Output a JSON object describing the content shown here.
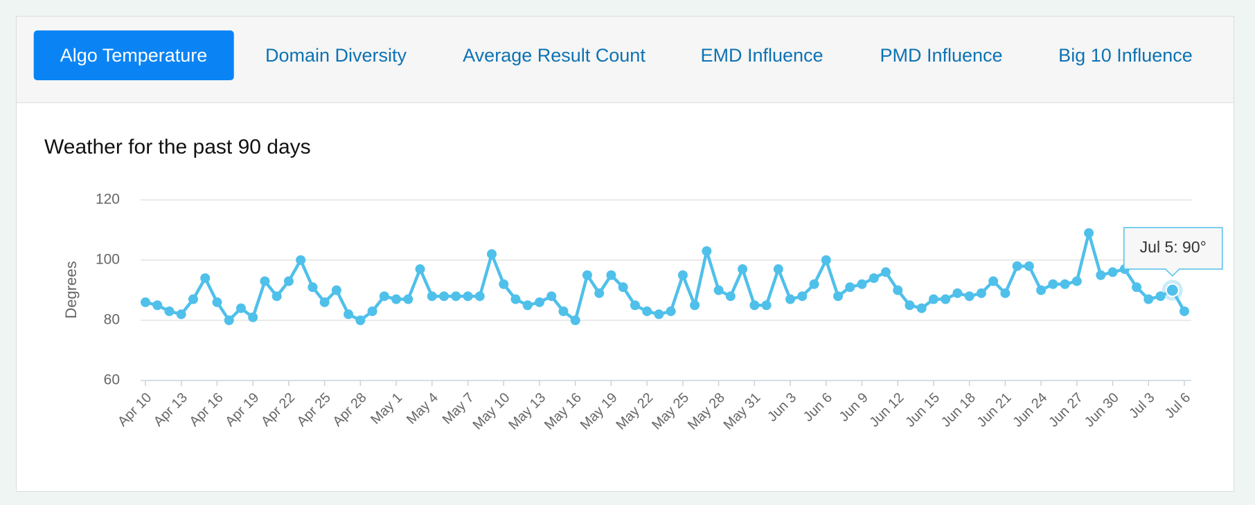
{
  "tabs": [
    "Algo Temperature",
    "Domain Diversity",
    "Average Result Count",
    "EMD Influence",
    "PMD Influence",
    "Big 10 Influence"
  ],
  "active_tab": 0,
  "chart_data": {
    "type": "line",
    "title": "Weather for the past 90 days",
    "y_label": "Degrees",
    "categories": [
      "Apr 10",
      null,
      null,
      "Apr 13",
      null,
      null,
      "Apr 16",
      null,
      null,
      "Apr 19",
      null,
      null,
      "Apr 22",
      null,
      null,
      "Apr 25",
      null,
      null,
      "Apr 28",
      null,
      null,
      "May 1",
      null,
      null,
      "May 4",
      null,
      null,
      "May 7",
      null,
      null,
      "May 10",
      null,
      null,
      "May 13",
      null,
      null,
      "May 16",
      null,
      null,
      "May 19",
      null,
      null,
      "May 22",
      null,
      null,
      "May 25",
      null,
      null,
      "May 28",
      null,
      null,
      "May 31",
      null,
      null,
      "Jun 3",
      null,
      null,
      "Jun 6",
      null,
      null,
      "Jun 9",
      null,
      null,
      "Jun 12",
      null,
      null,
      "Jun 15",
      null,
      null,
      "Jun 18",
      null,
      null,
      "Jun 21",
      null,
      null,
      "Jun 24",
      null,
      null,
      "Jun 27",
      null,
      null,
      "Jun 30",
      null,
      null,
      "Jul 3",
      null,
      null,
      "Jul 6"
    ],
    "values": [
      86,
      85,
      83,
      82,
      87,
      94,
      86,
      80,
      84,
      81,
      93,
      88,
      93,
      100,
      91,
      86,
      90,
      82,
      80,
      83,
      88,
      87,
      87,
      97,
      88,
      88,
      88,
      88,
      88,
      102,
      92,
      87,
      85,
      86,
      88,
      83,
      80,
      95,
      89,
      95,
      91,
      85,
      83,
      82,
      83,
      95,
      85,
      103,
      90,
      88,
      97,
      85,
      85,
      97,
      87,
      88,
      92,
      100,
      88,
      91,
      92,
      94,
      96,
      90,
      85,
      84,
      87,
      87,
      89,
      88,
      89,
      93,
      89,
      98,
      98,
      90,
      92,
      92,
      93,
      109,
      95,
      96,
      97,
      91,
      87,
      88,
      90,
      83
    ],
    "color": "#4fc0ea",
    "ylim": [
      60,
      120
    ],
    "yticks": [
      60,
      80,
      100,
      120
    ],
    "grid": true,
    "tooltip": {
      "text": "Jul 5: 90°",
      "index": 86
    }
  }
}
